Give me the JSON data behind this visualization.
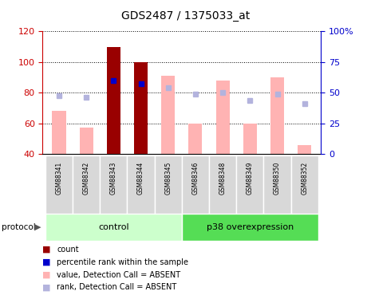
{
  "title": "GDS2487 / 1375033_at",
  "samples": [
    "GSM88341",
    "GSM88342",
    "GSM88343",
    "GSM88344",
    "GSM88345",
    "GSM88346",
    "GSM88348",
    "GSM88349",
    "GSM88350",
    "GSM88352"
  ],
  "count_values": [
    null,
    null,
    110,
    100,
    null,
    null,
    null,
    null,
    null,
    null
  ],
  "percentile_rank_left": [
    null,
    null,
    88,
    86,
    null,
    null,
    null,
    null,
    null,
    null
  ],
  "value_absent": [
    68,
    57,
    null,
    null,
    91,
    60,
    88,
    60,
    90,
    46
  ],
  "rank_absent_left": [
    78,
    77,
    null,
    null,
    83,
    79,
    80,
    75,
    79,
    73
  ],
  "ylim_left": [
    40,
    120
  ],
  "ylim_right": [
    0,
    100
  ],
  "yticks_left": [
    40,
    60,
    80,
    100,
    120
  ],
  "yticks_right": [
    0,
    25,
    50,
    75,
    100
  ],
  "ytick_labels_right": [
    "0",
    "25",
    "50",
    "75",
    "100%"
  ],
  "bar_width": 0.5,
  "count_color": "#990000",
  "percentile_color": "#0000cc",
  "value_absent_color": "#ffb3b3",
  "rank_absent_color": "#b3b3dd",
  "left_axis_color": "#cc0000",
  "right_axis_color": "#0000cc",
  "group_control_color": "#ccffcc",
  "group_p38_color": "#55dd55"
}
